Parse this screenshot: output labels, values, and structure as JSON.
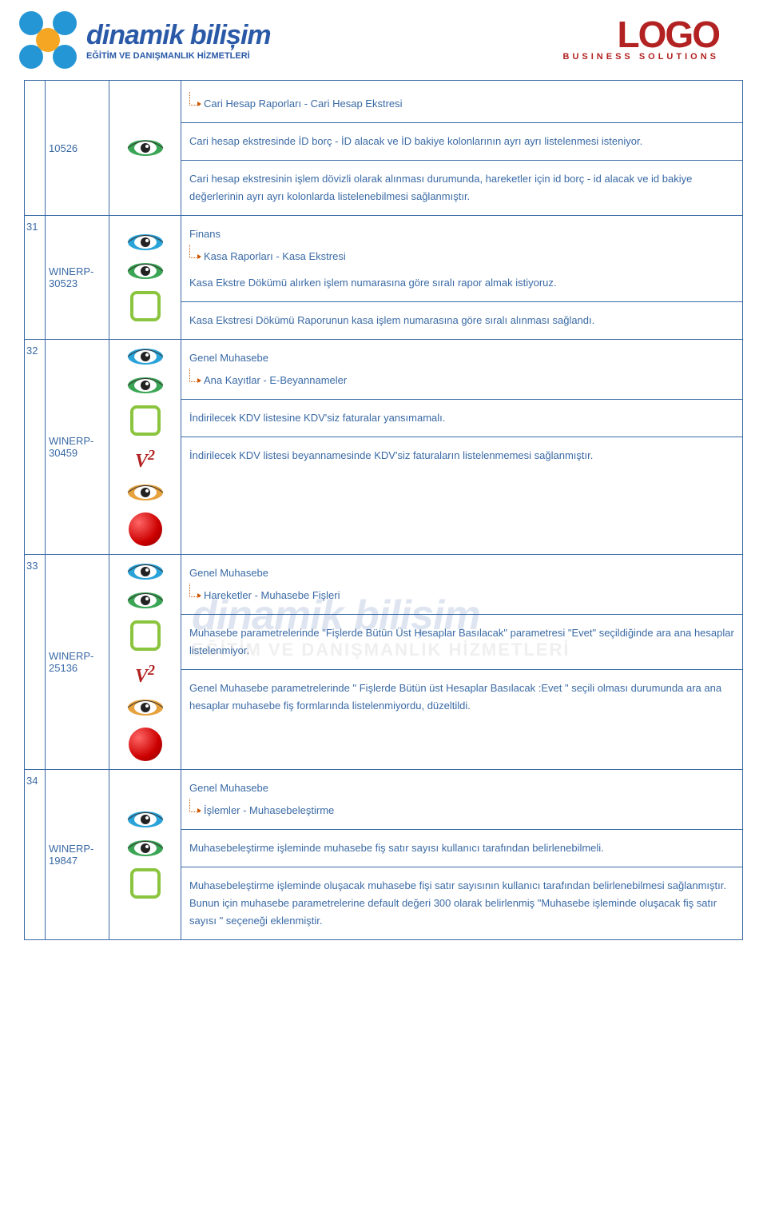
{
  "header": {
    "brand_main": "dinamik bilișim",
    "brand_sub": "EĞİTİM VE DANIŞMANLIK HİZMETLERİ",
    "logo_word": "LOGO",
    "logo_sub": "BUSINESS SOLUTIONS"
  },
  "watermark": {
    "main": "dinamik bilișim",
    "sub": "EĞİTİM VE DANIŞMANLIK HİZMETLERİ"
  },
  "eye_colors": {
    "blue": "#2aa3d9",
    "green": "#3aa655",
    "orange": "#e6a23c"
  },
  "rows": [
    {
      "num": "",
      "id_top": "10526",
      "icons": [
        {
          "type": "eye",
          "color": "green"
        }
      ],
      "cells": [
        {
          "arrow": true,
          "pre_text": "",
          "arrow_text": "Cari Hesap Raporları - Cari Hesap Ekstresi"
        },
        {
          "text": "Cari hesap ekstresinde İD borç - İD alacak ve İD bakiye kolonlarının ayrı ayrı listelenmesi isteniyor."
        },
        {
          "text": "Cari hesap ekstresinin işlem dövizli olarak alınması durumunda, hareketler için id borç - id alacak ve id bakiye değerlerinin ayrı ayrı kolonlarda listelenebilmesi sağlanmıştır."
        }
      ]
    },
    {
      "num": "31",
      "id": "WINERP-30523",
      "icons": [
        {
          "type": "eye",
          "color": "blue"
        },
        {
          "type": "eye",
          "color": "green"
        },
        {
          "type": "square",
          "color": "green"
        }
      ],
      "cells": [
        {
          "arrow": true,
          "pre_text": "Finans",
          "arrow_text": "Kasa Raporları - Kasa Ekstresi",
          "extra": "Kasa Ekstre Dökümü alırken işlem numarasına göre sıralı rapor almak istiyoruz."
        },
        {
          "text": "Kasa Ekstresi Dökümü Raporunun kasa işlem numarasına göre sıralı alınması sağlandı."
        }
      ]
    },
    {
      "num": "32",
      "id": "WINERP-30459",
      "icons": [
        {
          "type": "eye",
          "color": "blue"
        },
        {
          "type": "eye",
          "color": "green"
        },
        {
          "type": "square",
          "color": "green"
        },
        {
          "type": "v2"
        },
        {
          "type": "eye",
          "color": "orange"
        },
        {
          "type": "ball"
        }
      ],
      "cells": [
        {
          "arrow": true,
          "pre_text": "Genel Muhasebe",
          "arrow_text": "Ana Kayıtlar - E-Beyannameler"
        },
        {
          "text": "İndirilecek KDV listesine KDV'siz faturalar yansımamalı."
        },
        {
          "text": "İndirilecek KDV listesi beyannamesinde KDV'siz faturaların listelenmemesi sağlanmıştır."
        }
      ]
    },
    {
      "num": "33",
      "id": "WINERP-25136",
      "icons": [
        {
          "type": "eye",
          "color": "blue"
        },
        {
          "type": "eye",
          "color": "green"
        },
        {
          "type": "square",
          "color": "green"
        },
        {
          "type": "v2"
        },
        {
          "type": "eye",
          "color": "orange"
        },
        {
          "type": "ball"
        }
      ],
      "cells": [
        {
          "arrow": true,
          "pre_text": "Genel Muhasebe",
          "arrow_text": "Hareketler - Muhasebe Fişleri"
        },
        {
          "text": "Muhasebe parametrelerinde \"Fişlerde Bütün Üst Hesaplar Basılacak\" parametresi \"Evet\" seçildiğinde ara ana hesaplar listelenmiyor."
        },
        {
          "text": "Genel Muhasebe parametrelerinde \" Fişlerde Bütün üst Hesaplar Basılacak :Evet \" seçili olması durumunda ara ana hesaplar muhasebe fiş formlarında listelenmiyordu, düzeltildi."
        }
      ]
    },
    {
      "num": "34",
      "id": "WINERP-19847",
      "icons": [
        {
          "type": "eye",
          "color": "blue"
        },
        {
          "type": "eye",
          "color": "green"
        },
        {
          "type": "square",
          "color": "green"
        }
      ],
      "cells": [
        {
          "arrow": true,
          "pre_text": "Genel Muhasebe",
          "arrow_text": "İşlemler - Muhasebeleştirme"
        },
        {
          "text": "Muhasebeleştirme işleminde muhasebe fiş satır sayısı kullanıcı tarafından belirlenebilmeli."
        },
        {
          "text": "Muhasebeleştirme işleminde oluşacak muhasebe fişi satır sayısının kullanıcı tarafından belirlenebilmesi sağlanmıştır. Bunun için muhasebe parametrelerine default değeri 300 olarak belirlenmiş \"Muhasebe işleminde oluşacak fiş satır sayısı \" seçeneği eklenmiştir."
        }
      ]
    }
  ]
}
